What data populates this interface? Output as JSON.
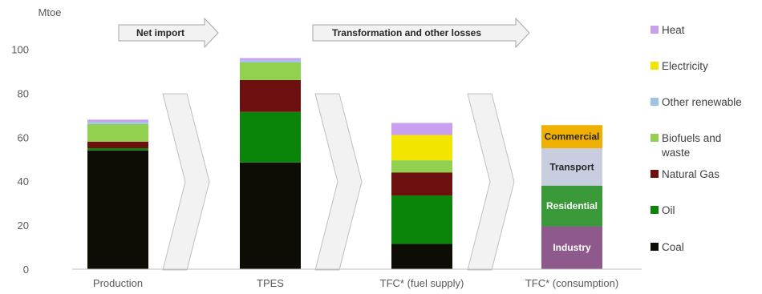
{
  "chart_data": {
    "type": "bar",
    "stacked": true,
    "unit_label": "Mtoe",
    "ylim": [
      0,
      100
    ],
    "yticks": [
      0,
      20,
      40,
      60,
      80,
      100
    ],
    "categories": [
      "Production",
      "TPES",
      "TFC* (fuel supply)",
      "TFC* (consumption)"
    ],
    "series": [
      {
        "name": "Coal",
        "color": "#0d0d05",
        "values": [
          54,
          48.5,
          11.5,
          null
        ]
      },
      {
        "name": "Oil",
        "color": "#0a850a",
        "values": [
          1,
          23,
          22,
          null
        ]
      },
      {
        "name": "Natural Gas",
        "color": "#6e1010",
        "values": [
          3,
          14.5,
          10.5,
          null
        ]
      },
      {
        "name": "Biofuels and waste",
        "color": "#92d050",
        "values": [
          8,
          8,
          5.5,
          null
        ]
      },
      {
        "name": "Other renewable",
        "color": "#9dc3e6",
        "values": [
          1,
          1,
          0,
          null
        ]
      },
      {
        "name": "Electricity",
        "color": "#f2e600",
        "values": [
          0,
          0,
          11.5,
          null
        ]
      },
      {
        "name": "Heat",
        "color": "#c9a0ee",
        "values": [
          1,
          1,
          5.5,
          null
        ]
      }
    ],
    "consumption": [
      {
        "label": "Industry",
        "color": "#8e5a8b",
        "text_color": "#ffffff",
        "value": 19.5
      },
      {
        "label": "Residential",
        "color": "#3a9a3a",
        "text_color": "#ffffff",
        "value": 18.5
      },
      {
        "label": "Transport",
        "color": "#c8cde0",
        "text_color": "#262626",
        "value": 17
      },
      {
        "label": "Commercial",
        "color": "#f0b000",
        "text_color": "#262626",
        "value": 10.5
      }
    ],
    "flows": [
      "Net import",
      "Transformation and other losses"
    ]
  }
}
